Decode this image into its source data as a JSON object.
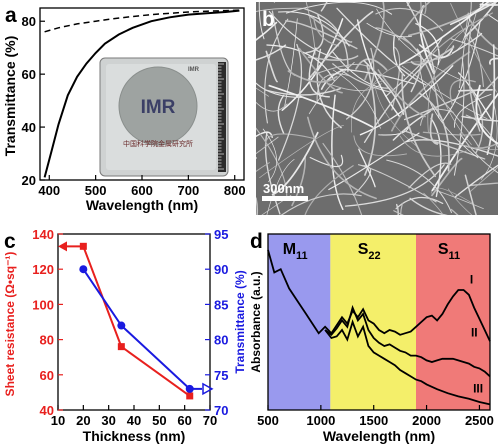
{
  "colors": {
    "red": "#e8201e",
    "blue": "#1a1ae0",
    "band_m11": "#9999ee",
    "band_s22": "#f4ef6a",
    "band_s11": "#f07a78",
    "sem_bg": "#6d6d6d"
  },
  "chart_data": [
    {
      "id": "a",
      "panel_letter": "a",
      "type": "line",
      "xlabel": "Wavelength (nm)",
      "ylabel": "Transmittance (%)",
      "xlim": [
        380,
        820
      ],
      "ylim": [
        20,
        85
      ],
      "xticks": [
        400,
        500,
        600,
        700,
        800
      ],
      "yticks": [
        20,
        40,
        60,
        80
      ],
      "series": [
        {
          "style": "solid",
          "x": [
            390,
            405,
            420,
            440,
            460,
            480,
            500,
            520,
            550,
            580,
            620,
            660,
            700,
            740,
            780,
            810
          ],
          "y": [
            21,
            31,
            41,
            52,
            59,
            64,
            68,
            71.5,
            75,
            77.5,
            80,
            81.5,
            82.5,
            83,
            83.5,
            84
          ]
        },
        {
          "style": "dashed",
          "x": [
            390,
            420,
            460,
            500,
            540,
            580,
            620,
            660,
            700,
            740,
            780,
            810
          ],
          "y": [
            76,
            77.5,
            79,
            80,
            81,
            81.8,
            82.5,
            83,
            83.5,
            83.8,
            84,
            84.2
          ]
        }
      ],
      "inset": {
        "logo": "IMR",
        "caption": "中国科学院金属研究所"
      }
    },
    {
      "id": "b",
      "panel_letter": "b",
      "type": "image",
      "scale_bar": "300nm"
    },
    {
      "id": "c",
      "panel_letter": "c",
      "type": "line",
      "xlabel": "Thickness (nm)",
      "ylabel_left": "Sheet resistance (Ω•sq⁻¹)",
      "ylabel_right": "Transmittance (%)",
      "xlim": [
        10,
        70
      ],
      "ylim_left": [
        40,
        140
      ],
      "ylim_right": [
        70,
        95
      ],
      "xticks": [
        10,
        20,
        30,
        40,
        50,
        60,
        70
      ],
      "yticks_left": [
        40,
        60,
        80,
        100,
        120,
        140
      ],
      "yticks_right": [
        70,
        75,
        80,
        85,
        90,
        95
      ],
      "series": [
        {
          "axis": "left",
          "color": "red",
          "marker": "square",
          "x": [
            20,
            35,
            62
          ],
          "y": [
            133,
            76,
            48
          ]
        },
        {
          "axis": "right",
          "color": "blue",
          "marker": "circle",
          "x": [
            20,
            35,
            62
          ],
          "y": [
            90,
            82,
            73
          ]
        }
      ]
    },
    {
      "id": "d",
      "panel_letter": "d",
      "type": "line",
      "xlabel": "Wavelength (nm)",
      "ylabel": "Absorbance (a.u.)",
      "xlim": [
        500,
        2600
      ],
      "xticks": [
        500,
        1000,
        1500,
        2000,
        2500
      ],
      "bands": [
        {
          "label": "M",
          "sub": "11",
          "from": 500,
          "to": 1090,
          "color": "band_m11"
        },
        {
          "label": "S",
          "sub": "22",
          "from": 1090,
          "to": 1900,
          "color": "band_s22"
        },
        {
          "label": "S",
          "sub": "11",
          "from": 1900,
          "to": 2600,
          "color": "band_s11"
        }
      ],
      "series": [
        {
          "name": "I",
          "x": [
            500,
            560,
            620,
            700,
            780,
            860,
            920,
            980,
            1040,
            1100,
            1150,
            1200,
            1250,
            1300,
            1350,
            1400,
            1450,
            1500,
            1550,
            1600,
            1650,
            1700,
            1750,
            1800,
            1850,
            1900,
            1950,
            2000,
            2050,
            2100,
            2150,
            2200,
            2250,
            2300,
            2350,
            2400,
            2450,
            2500,
            2550,
            2600
          ],
          "y": [
            10,
            8.6,
            8.8,
            7.6,
            6.8,
            6.0,
            5.4,
            4.8,
            5.2,
            4.8,
            5.3,
            5.8,
            5.4,
            6.2,
            5.8,
            6.3,
            5.6,
            5.4,
            5.0,
            4.8,
            5.0,
            4.9,
            4.7,
            4.8,
            4.9,
            5.2,
            5.5,
            5.8,
            5.9,
            5.6,
            6.0,
            6.6,
            7.1,
            7.5,
            7.5,
            7.2,
            6.4,
            5.7,
            5.0,
            4.3
          ]
        },
        {
          "name": "II",
          "x": [
            1040,
            1100,
            1150,
            1200,
            1250,
            1300,
            1350,
            1400,
            1450,
            1500,
            1550,
            1600,
            1650,
            1700,
            1750,
            1800,
            1850,
            1900,
            1950,
            2000,
            2050,
            2100,
            2150,
            2200,
            2250,
            2300,
            2350,
            2400,
            2450,
            2500,
            2550,
            2600
          ],
          "y": [
            5.0,
            4.7,
            5.1,
            5.6,
            5.2,
            6.4,
            5.6,
            6.0,
            5.0,
            4.5,
            4.2,
            4.0,
            4.1,
            3.9,
            3.7,
            3.6,
            3.4,
            3.4,
            3.3,
            3.1,
            3.0,
            3.1,
            3.2,
            3.2,
            3.2,
            3.1,
            3.0,
            2.9,
            2.7,
            2.6,
            2.4,
            2.1
          ]
        },
        {
          "name": "III",
          "x": [
            1040,
            1100,
            1150,
            1200,
            1250,
            1300,
            1350,
            1400,
            1450,
            1500,
            1550,
            1600,
            1650,
            1700,
            1750,
            1800,
            1850,
            1900,
            1950,
            2000,
            2100,
            2200,
            2300,
            2400,
            2500,
            2600
          ],
          "y": [
            5.0,
            4.5,
            4.6,
            5.0,
            4.4,
            5.5,
            4.6,
            5.2,
            4.0,
            3.6,
            3.4,
            3.2,
            3.0,
            2.8,
            2.5,
            2.3,
            2.1,
            1.9,
            1.8,
            1.6,
            1.3,
            1.05,
            0.85,
            0.7,
            0.5,
            0.35
          ]
        }
      ]
    }
  ]
}
